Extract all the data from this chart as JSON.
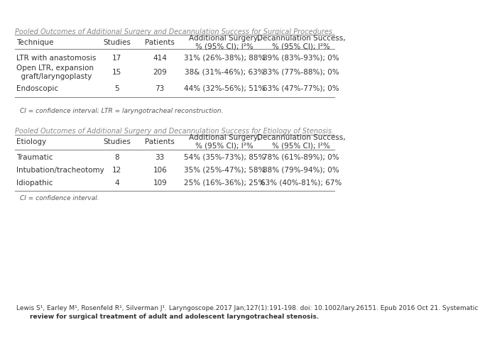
{
  "title1": "Pooled Outcomes of Additional Surgery and Decannulation Success for Surgical Procedures.",
  "table1_headers": [
    "Technique",
    "Studies",
    "Patients",
    "Additional Surgery,\n% (95% CI); I²%",
    "Decannulation Success,\n% (95% CI); I²%"
  ],
  "table1_rows": [
    [
      "LTR with anastomosis",
      "17",
      "414",
      "31% (26%-38%); 88%",
      "89% (83%-93%); 0%"
    ],
    [
      "Open LTR, expansion\n  graft/laryngoplasty",
      "15",
      "209",
      "38& (31%-46%); 63%",
      "83% (77%-88%); 0%"
    ],
    [
      "Endoscopic",
      "5",
      "73",
      "44% (32%-56%); 51%",
      "63% (47%-77%); 0%"
    ]
  ],
  "table1_note": "CI = confidence interval; LTR = laryngotracheal reconstruction.",
  "title2": "Pooled Outcomes of Additional Surgery and Decannulation Success for Etiology of Stenosis.",
  "table2_headers": [
    "Etiology",
    "Studies",
    "Patients",
    "Additional Surgery,\n% (95% CI); I²%",
    "Decannulation Success,\n% (95% CI); I²%"
  ],
  "table2_rows": [
    [
      "Traumatic",
      "8",
      "33",
      "54% (35%-73%); 85%",
      "78% (61%-89%); 0%"
    ],
    [
      "Intubation/tracheotomy",
      "12",
      "106",
      "35% (25%-47%); 58%",
      "88% (79%-94%); 0%"
    ],
    [
      "Idiopathic",
      "4",
      "109",
      "25% (16%-36%); 25%",
      "63% (40%-81%); 67%"
    ]
  ],
  "table2_note": "CI = confidence interval.",
  "citation_line1": "Lewis S¹, Earley M¹, Rosenfeld R¹, Silverman J¹. Laryngoscope.2017 Jan;127(1):191-198. doi: 10.1002/lary.26151. Epub 2016 Oct 21. Systematic",
  "citation_line2": "review for surgical treatment of adult and adolescent laryngotracheal stenosis.",
  "bg_color": "#ffffff",
  "text_color": "#333333",
  "line_color": "#999999",
  "title_color": "#888888",
  "note_color": "#555555",
  "font_size_title": 7.0,
  "font_size_header": 7.5,
  "font_size_data": 7.5,
  "font_size_note": 6.5,
  "font_size_citation": 6.5
}
